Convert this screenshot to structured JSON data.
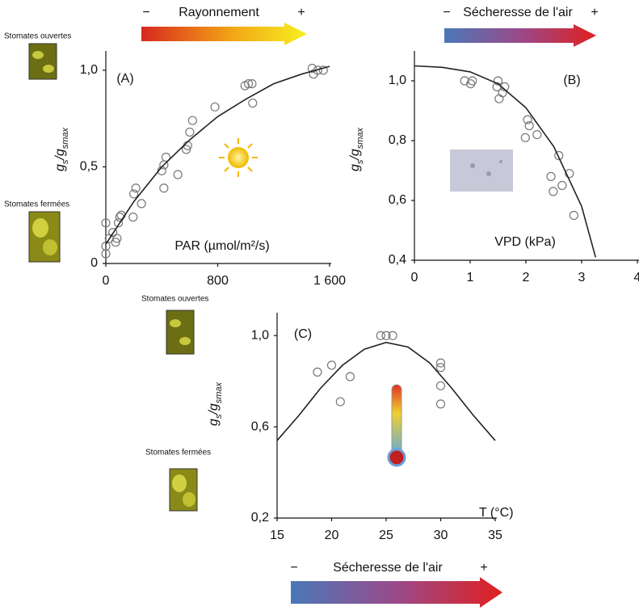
{
  "chart_data": [
    {
      "type": "scatter",
      "panel": "(A)",
      "x_label": "PAR (µmol/m²/s)",
      "y_label": [
        "g",
        "s",
        "/g",
        "smax"
      ],
      "arrow_labels": [
        "−",
        "Rayonnement",
        "+"
      ],
      "annotations": [
        "Stomates ouvertes",
        "Stomates fermées"
      ],
      "xlim": [
        0,
        1600
      ],
      "ylim": [
        0,
        1.1
      ],
      "xticks": [
        0,
        800,
        {
          "value": 1600,
          "label": "1 600"
        }
      ],
      "yticks": [
        0,
        {
          "value": 0.5,
          "label": "0,5"
        },
        {
          "value": 1.0,
          "label": "1,0"
        }
      ],
      "series": [
        {
          "type": "scatter",
          "color": "#777777",
          "x": [
            0,
            0,
            0,
            50,
            25,
            70,
            90,
            110,
            100,
            80,
            200,
            215,
            255,
            195,
            415,
            415,
            430,
            400,
            515,
            575,
            585,
            600,
            620,
            780,
            995,
            1020,
            1045,
            1050,
            1475,
            1485,
            1515,
            1555
          ],
          "values": [
            0.09,
            0.05,
            0.21,
            0.16,
            0.13,
            0.11,
            0.21,
            0.25,
            0.24,
            0.13,
            0.36,
            0.39,
            0.31,
            0.24,
            0.39,
            0.51,
            0.55,
            0.48,
            0.46,
            0.59,
            0.61,
            0.68,
            0.74,
            0.81,
            0.92,
            0.93,
            0.93,
            0.83,
            1.01,
            0.98,
            1.0,
            1.0
          ]
        },
        {
          "type": "line",
          "color": "#222222",
          "x": [
            0,
            200,
            400,
            600,
            800,
            1000,
            1200,
            1400,
            1600
          ],
          "values": [
            0.1,
            0.32,
            0.5,
            0.64,
            0.76,
            0.85,
            0.93,
            0.98,
            1.02
          ]
        }
      ]
    },
    {
      "type": "scatter",
      "panel": "(B)",
      "x_label": "VPD (kPa)",
      "y_label": [
        "g",
        "s",
        "/g",
        "smax"
      ],
      "arrow_labels": [
        "−",
        "Sécheresse de l'air",
        "+"
      ],
      "xlim": [
        0,
        4
      ],
      "ylim": [
        0.4,
        1.1
      ],
      "xticks": [
        0,
        1,
        2,
        3,
        4
      ],
      "yticks": [
        {
          "value": 0.4,
          "label": "0,4"
        },
        {
          "value": 0.6,
          "label": "0,6"
        },
        {
          "value": 0.8,
          "label": "0,8"
        },
        {
          "value": 1.0,
          "label": "1,0"
        }
      ],
      "series": [
        {
          "type": "scatter",
          "color": "#777777",
          "x": [
            0.9,
            1.01,
            1.04,
            1.5,
            1.48,
            1.58,
            1.52,
            1.62,
            2.03,
            2.06,
            2.2,
            1.99,
            2.59,
            2.78,
            2.45,
            2.49,
            2.65,
            2.86
          ],
          "values": [
            1.0,
            0.99,
            1.0,
            1.0,
            0.98,
            0.96,
            0.94,
            0.98,
            0.87,
            0.85,
            0.82,
            0.81,
            0.75,
            0.69,
            0.68,
            0.63,
            0.65,
            0.55
          ]
        },
        {
          "type": "line",
          "color": "#222222",
          "x": [
            0,
            0.5,
            1,
            1.5,
            2,
            2.5,
            3,
            3.25
          ],
          "values": [
            1.05,
            1.045,
            1.03,
            0.99,
            0.91,
            0.78,
            0.58,
            0.41
          ]
        }
      ]
    },
    {
      "type": "scatter",
      "panel": "(C)",
      "x_label": "T (°C)",
      "y_label": [
        "g",
        "s",
        "/g",
        "smax"
      ],
      "arrow_labels": [
        "−",
        "Sécheresse de l'air",
        "+"
      ],
      "annotations": [
        "Stomates ouvertes",
        "Stomates fermées"
      ],
      "xlim": [
        15,
        35
      ],
      "ylim": [
        0.2,
        1.1
      ],
      "xticks": [
        15,
        20,
        25,
        30,
        35
      ],
      "yticks": [
        {
          "value": 0.2,
          "label": "0,2"
        },
        {
          "value": 0.6,
          "label": "0,6"
        },
        {
          "value": 1.0,
          "label": "1,0"
        }
      ],
      "series": [
        {
          "type": "scatter",
          "color": "#777777",
          "x": [
            18.7,
            20,
            21.7,
            20.8,
            24.5,
            25,
            25.6,
            30,
            30,
            30,
            30
          ],
          "values": [
            0.84,
            0.87,
            0.82,
            0.71,
            1.0,
            1.0,
            1.0,
            0.88,
            0.86,
            0.78,
            0.7
          ]
        },
        {
          "type": "line",
          "color": "#222222",
          "x": [
            15,
            17,
            19,
            21,
            23,
            25,
            27,
            29,
            31,
            33,
            35
          ],
          "values": [
            0.54,
            0.65,
            0.77,
            0.87,
            0.94,
            0.97,
            0.95,
            0.88,
            0.77,
            0.65,
            0.54
          ]
        }
      ]
    }
  ]
}
